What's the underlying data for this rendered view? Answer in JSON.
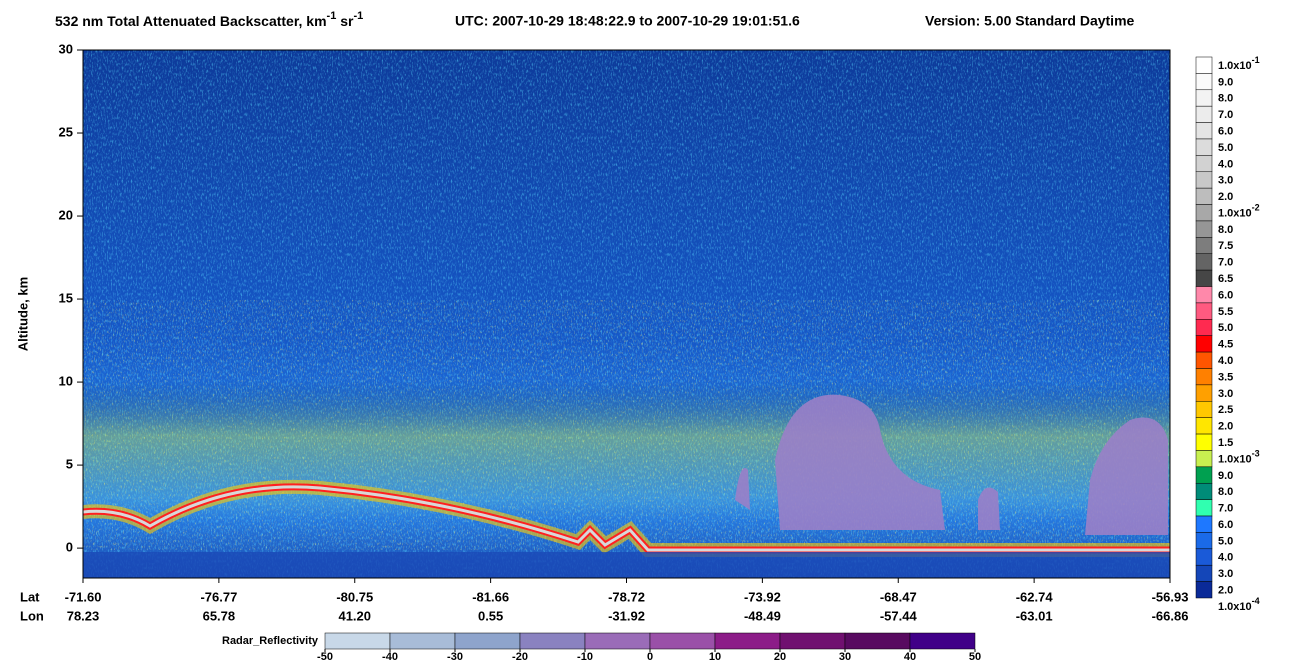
{
  "chart_data": {
    "type": "heatmap",
    "title": {
      "text": "532 nm Total Attenuated Backscatter, km",
      "sup1": "-1",
      "mid": " sr",
      "sup2": "-1"
    },
    "utc": "UTC:  2007-10-29 18:48:22.9  to  2007-10-29 19:01:51.6",
    "version": "Version: 5.00  Standard  Daytime",
    "ylabel": "Altitude, km",
    "ylim": [
      -1.8,
      30
    ],
    "yticks": [
      0,
      5,
      10,
      15,
      20,
      25,
      30
    ],
    "x_rows": {
      "lat_label": "Lat",
      "lat": [
        "-71.60",
        "-76.77",
        "-80.75",
        "-81.66",
        "-78.72",
        "-73.92",
        "-68.47",
        "-62.74",
        "-56.93"
      ],
      "lon_label": "Lon",
      "lon": [
        "78.23",
        "65.78",
        "41.20",
        "0.55",
        "-31.92",
        "-48.49",
        "-57.44",
        "-63.01",
        "-66.86"
      ]
    },
    "colorbar": {
      "labels": [
        {
          "base": "1.0x10",
          "exp": "-1"
        },
        "9.0",
        "8.0",
        "7.0",
        "6.0",
        "5.0",
        "4.0",
        "3.0",
        "2.0",
        {
          "base": "1.0x10",
          "exp": "-2"
        },
        "8.0",
        "7.5",
        "7.0",
        "6.5",
        "6.0",
        "5.5",
        "5.0",
        "4.5",
        "4.0",
        "3.5",
        "3.0",
        "2.5",
        "2.0",
        "1.5",
        {
          "base": "1.0x10",
          "exp": "-3"
        },
        "9.0",
        "8.0",
        "7.0",
        "6.0",
        "5.0",
        "4.0",
        "3.0",
        "2.0",
        {
          "base": "1.0x10",
          "exp": "-4"
        }
      ],
      "colors": [
        "#ffffff",
        "#fafafa",
        "#f3f3f3",
        "#ececec",
        "#e4e4e4",
        "#dcdcdc",
        "#d2d2d2",
        "#c8c8c8",
        "#bdbdbd",
        "#a8a8a8",
        "#969696",
        "#7d7d7d",
        "#646464",
        "#464646",
        "#ff88aa",
        "#ff5a80",
        "#ff2a50",
        "#ff0000",
        "#ff5500",
        "#ff8000",
        "#ffa000",
        "#ffc800",
        "#ffe600",
        "#ffff00",
        "#c8f050",
        "#00a050",
        "#008c78",
        "#30ffb0",
        "#1e78ff",
        "#1a6ae8",
        "#1a5ad8",
        "#1446b8",
        "#0a2a98"
      ]
    },
    "radar": {
      "label": "Radar_Reflectivity",
      "ticks": [
        -50,
        -40,
        -30,
        -20,
        -10,
        0,
        10,
        20,
        30,
        40,
        50
      ],
      "colors": [
        "#c8d8e8",
        "#a8bcd8",
        "#8ea4cc",
        "#8a82c0",
        "#9a6cb8",
        "#9a50a8",
        "#8c1c88",
        "#701070",
        "#580a60",
        "#400088"
      ]
    }
  }
}
